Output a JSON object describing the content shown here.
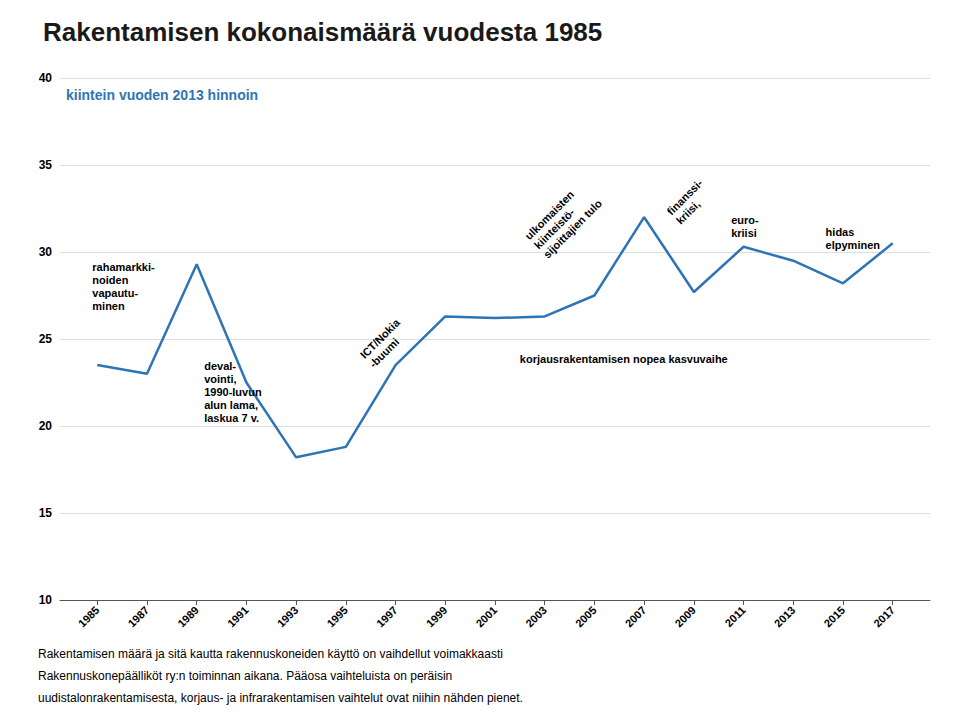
{
  "chart_data": {
    "type": "line",
    "title": "Rakentamisen kokonaismäärä vuodesta 1985",
    "ylabel": "kiintein vuoden 2013 hinnoin",
    "footer": [
      "Rakentamisen määrä ja sitä kautta rakennuskoneiden käyttö on vaihdellut voimakkaasti",
      "Rakennuskonepäälliköt ry:n toiminnan aikana. Pääosa vaihteluista on peräisin",
      "uudistalonrakentamisesta, korjaus- ja infrarakentamisen vaihtelut ovat niihin nähden pienet."
    ],
    "x": [
      1985,
      1987,
      1989,
      1991,
      1993,
      1995,
      1997,
      1999,
      2001,
      2003,
      2005,
      2007,
      2009,
      2011,
      2013,
      2015,
      2017
    ],
    "values": [
      23.5,
      23.0,
      29.3,
      22.5,
      18.2,
      18.8,
      23.5,
      26.3,
      26.2,
      26.3,
      27.5,
      32.0,
      27.7,
      30.3,
      29.5,
      28.2,
      30.5
    ],
    "color": "#2e74b5",
    "xlim": [
      1983.5,
      2018.5
    ],
    "xticks": [
      1985,
      1987,
      1989,
      1991,
      1993,
      1995,
      1997,
      1999,
      2001,
      2003,
      2005,
      2007,
      2009,
      2011,
      2013,
      2015,
      2017
    ],
    "ylim": [
      10,
      40
    ],
    "yticks": [
      10,
      15,
      20,
      25,
      30,
      35,
      40
    ],
    "grid": true,
    "annotations": [
      {
        "text": "rahamarkki-\nnoiden\nvapautu-\nminen",
        "x": 1984.8,
        "y": 29.5
      },
      {
        "text": "deval-\nvointi,\n1990-luvun\nalun lama,\nlaskua 7 v.",
        "x": 1989.3,
        "y": 23.8
      },
      {
        "text": "ICT/Nokia\n-buumi",
        "x": 1996.2,
        "y": 23.2
      },
      {
        "text": "ulkomaisten\nkiinteistö-\nsijoittajien tulo",
        "x": 2003.2,
        "y": 29.5
      },
      {
        "text": "finanssi-\nkriisi,",
        "x": 2007.8,
        "y": 32.5
      },
      {
        "text": "euro-\nkriisi",
        "x": 2010.5,
        "y": 32.2
      },
      {
        "text": "hidas\nelpyminen",
        "x": 2014.3,
        "y": 31.5
      },
      {
        "text": "korjausrakentamisen nopea kasvuvaihe",
        "x": 2002.0,
        "y": 24.2
      }
    ]
  }
}
